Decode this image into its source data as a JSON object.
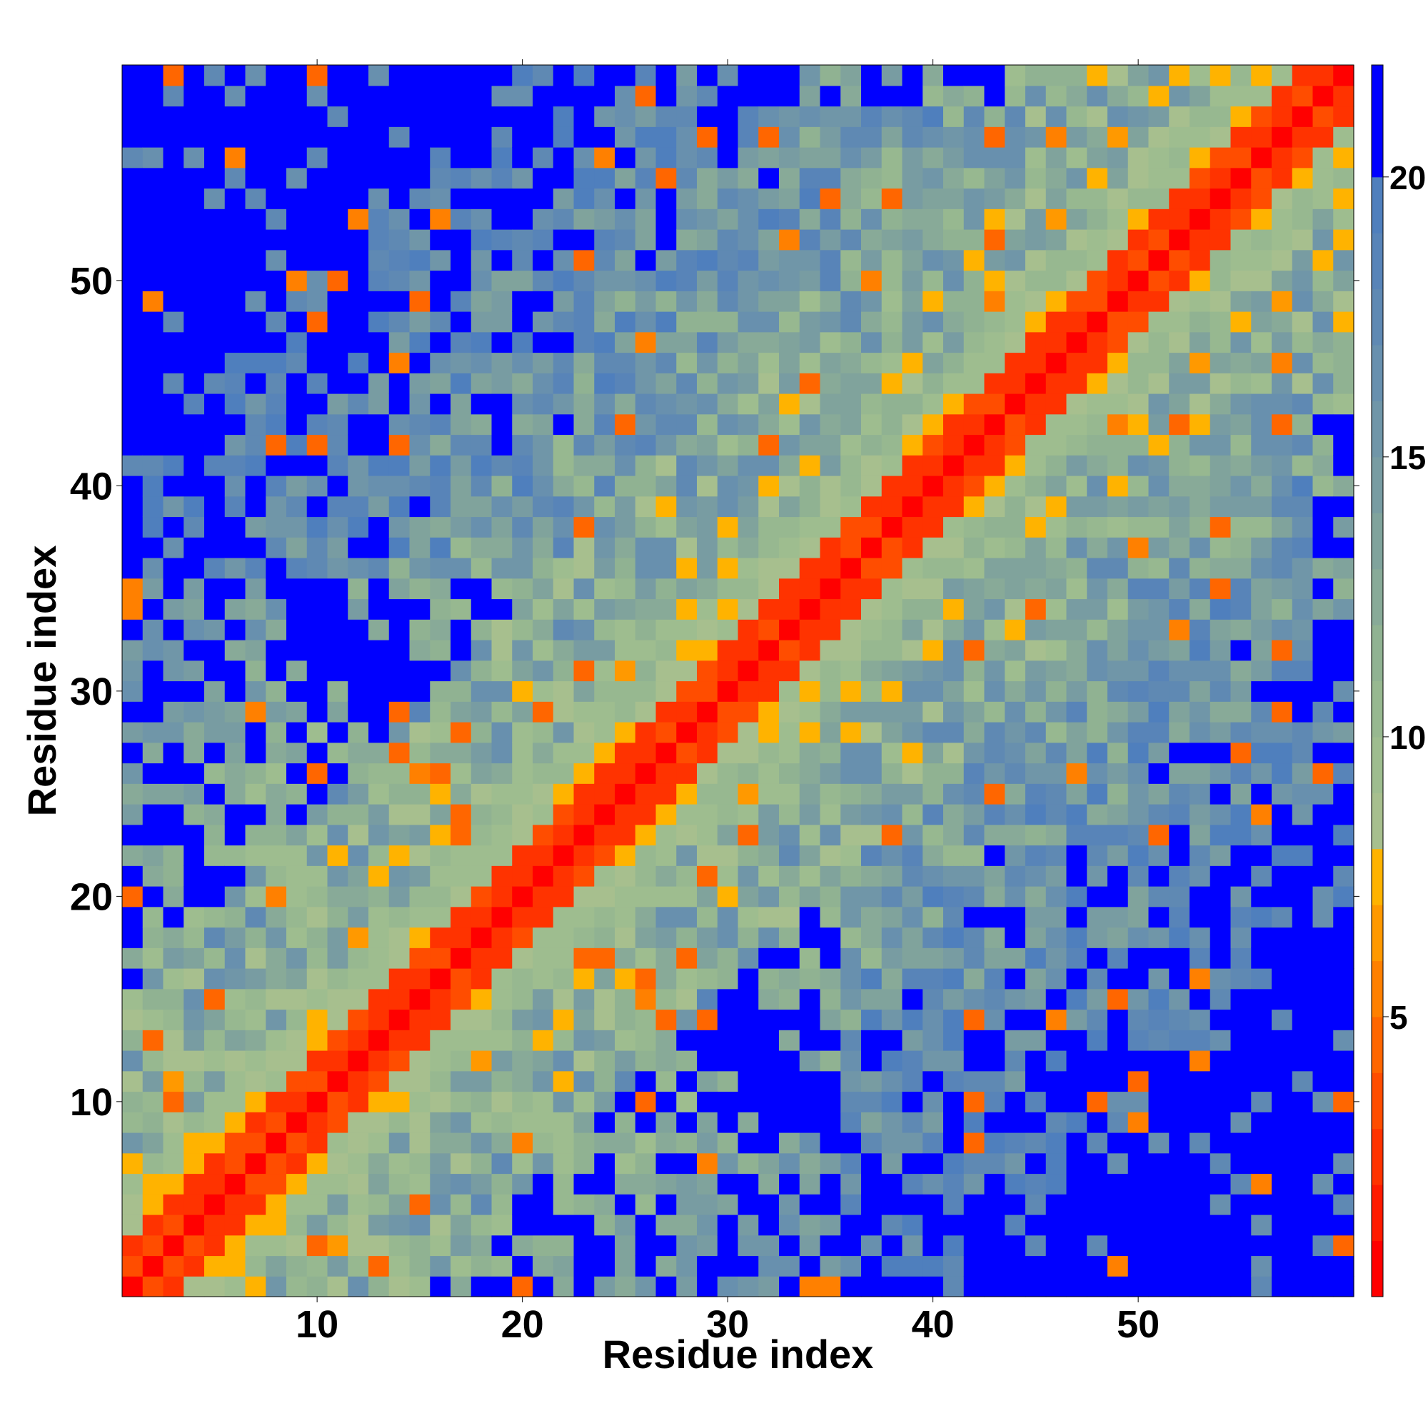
{
  "chart_data": {
    "type": "heatmap",
    "title": "",
    "xlabel": "Residue index",
    "ylabel": "Residue index",
    "n": 60,
    "xlim": [
      0.5,
      60.5
    ],
    "ylim": [
      0.5,
      60.5
    ],
    "x_ticks": [
      10,
      20,
      30,
      40,
      50
    ],
    "y_ticks": [
      10,
      20,
      30,
      40,
      50
    ],
    "grid": false,
    "symmetric": true,
    "colorbar": {
      "ticks": [
        5,
        10,
        15,
        20
      ],
      "range": [
        0,
        22
      ],
      "bins": [
        {
          "upper": 1,
          "color": "#ff0000"
        },
        {
          "upper": 2,
          "color": "#ff1a00"
        },
        {
          "upper": 3,
          "color": "#ff3300"
        },
        {
          "upper": 4,
          "color": "#ff4d00"
        },
        {
          "upper": 5,
          "color": "#ff6600"
        },
        {
          "upper": 6,
          "color": "#ff8000"
        },
        {
          "upper": 7,
          "color": "#ff9900"
        },
        {
          "upper": 8,
          "color": "#ffb300"
        },
        {
          "upper": 9,
          "color": "#a7bf8e"
        },
        {
          "upper": 10,
          "color": "#9ebd8f"
        },
        {
          "upper": 11,
          "color": "#97b890"
        },
        {
          "upper": 12,
          "color": "#90b292"
        },
        {
          "upper": 13,
          "color": "#88aa98"
        },
        {
          "upper": 14,
          "color": "#80a39c"
        },
        {
          "upper": 15,
          "color": "#789ca2"
        },
        {
          "upper": 16,
          "color": "#7096a8"
        },
        {
          "upper": 17,
          "color": "#6890ae"
        },
        {
          "upper": 18,
          "color": "#5f89b3"
        },
        {
          "upper": 19,
          "color": "#5884b8"
        },
        {
          "upper": 20,
          "color": "#4f7fbd"
        },
        {
          "upper": 22,
          "color": "#0000ff"
        }
      ]
    },
    "description_values": {
      "diagonal_distance": 0,
      "cutoff_far": 21,
      "near_band_width": 4.5,
      "mid_band_width": 14
    }
  }
}
